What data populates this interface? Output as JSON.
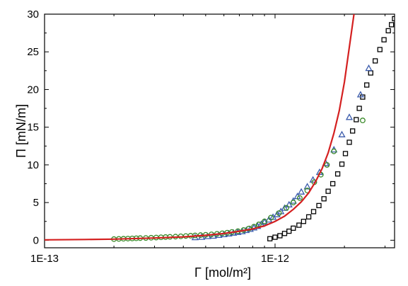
{
  "chart_data": {
    "type": "scatter",
    "title": "",
    "xlabel": "Γ [mol/m²]",
    "ylabel": "Π [mN/m]",
    "xscale": "log",
    "xlim": [
      1e-13,
      3.3e-12
    ],
    "ylim": [
      -1,
      30
    ],
    "x_ticks": [
      1e-13,
      1e-12
    ],
    "x_tick_labels": [
      "1E-13",
      "1E-12"
    ],
    "y_ticks": [
      0,
      5,
      10,
      15,
      20,
      25,
      30
    ],
    "y_tick_labels": [
      "0",
      "5",
      "10",
      "15",
      "20",
      "25",
      "30"
    ],
    "grid": false,
    "legend": "none",
    "series": [
      {
        "marker": "square",
        "color": "#000000",
        "points": [
          [
            9.5e-13,
            0.2
          ],
          [
            1e-12,
            0.4
          ],
          [
            1.05e-12,
            0.6
          ],
          [
            1.1e-12,
            0.9
          ],
          [
            1.15e-12,
            1.2
          ],
          [
            1.2e-12,
            1.6
          ],
          [
            1.27e-12,
            2.0
          ],
          [
            1.33e-12,
            2.5
          ],
          [
            1.4e-12,
            3.1
          ],
          [
            1.47e-12,
            3.8
          ],
          [
            1.55e-12,
            4.6
          ],
          [
            1.63e-12,
            5.5
          ],
          [
            1.7e-12,
            6.5
          ],
          [
            1.78e-12,
            7.5
          ],
          [
            1.87e-12,
            8.8
          ],
          [
            1.95e-12,
            10.1
          ],
          [
            2.02e-12,
            11.5
          ],
          [
            2.1e-12,
            13.0
          ],
          [
            2.17e-12,
            14.5
          ],
          [
            2.25e-12,
            16.0
          ],
          [
            2.32e-12,
            17.5
          ],
          [
            2.4e-12,
            19.0
          ],
          [
            2.5e-12,
            20.6
          ],
          [
            2.6e-12,
            22.2
          ],
          [
            2.72e-12,
            23.8
          ],
          [
            2.85e-12,
            25.3
          ],
          [
            2.97e-12,
            26.6
          ],
          [
            3.1e-12,
            27.8
          ],
          [
            3.2e-12,
            28.6
          ],
          [
            3.3e-12,
            29.4
          ]
        ]
      },
      {
        "marker": "triangle",
        "color": "#3b5bab",
        "points": [
          [
            4.5e-13,
            0.35
          ],
          [
            4.8e-13,
            0.4
          ],
          [
            5.1e-13,
            0.5
          ],
          [
            5.4e-13,
            0.55
          ],
          [
            5.7e-13,
            0.65
          ],
          [
            6e-13,
            0.75
          ],
          [
            6.3e-13,
            0.85
          ],
          [
            6.6e-13,
            0.95
          ],
          [
            6.9e-13,
            1.05
          ],
          [
            7.2e-13,
            1.15
          ],
          [
            7.5e-13,
            1.3
          ],
          [
            7.8e-13,
            1.45
          ],
          [
            8.1e-13,
            1.65
          ],
          [
            8.4e-13,
            1.85
          ],
          [
            8.7e-13,
            2.1
          ],
          [
            9e-13,
            2.4
          ],
          [
            9.4e-13,
            2.7
          ],
          [
            9.8e-13,
            3.05
          ],
          [
            1.02e-12,
            3.4
          ],
          [
            1.06e-12,
            3.8
          ],
          [
            1.1e-12,
            4.25
          ],
          [
            1.15e-12,
            4.7
          ],
          [
            1.2e-12,
            5.2
          ],
          [
            1.25e-12,
            5.8
          ],
          [
            1.3e-12,
            6.4
          ],
          [
            1.38e-12,
            7.1
          ],
          [
            1.46e-12,
            8.0
          ],
          [
            1.56e-12,
            9.0
          ],
          [
            1.66e-12,
            10.2
          ],
          [
            1.8e-12,
            12.0
          ],
          [
            1.95e-12,
            14.0
          ],
          [
            2.1e-12,
            16.3
          ],
          [
            2.35e-12,
            19.3
          ],
          [
            2.55e-12,
            22.8
          ]
        ]
      },
      {
        "marker": "circle",
        "color": "#3b8a2a",
        "points": [
          [
            2e-13,
            0.15
          ],
          [
            2.1e-13,
            0.18
          ],
          [
            2.2e-13,
            0.2
          ],
          [
            2.3e-13,
            0.22
          ],
          [
            2.4e-13,
            0.24
          ],
          [
            2.5e-13,
            0.26
          ],
          [
            2.6e-13,
            0.28
          ],
          [
            2.75e-13,
            0.3
          ],
          [
            2.9e-13,
            0.33
          ],
          [
            3.05e-13,
            0.36
          ],
          [
            3.2e-13,
            0.39
          ],
          [
            3.35e-13,
            0.42
          ],
          [
            3.5e-13,
            0.45
          ],
          [
            3.7e-13,
            0.48
          ],
          [
            3.9e-13,
            0.52
          ],
          [
            4.1e-13,
            0.56
          ],
          [
            4.3e-13,
            0.6
          ],
          [
            4.5e-13,
            0.64
          ],
          [
            4.75e-13,
            0.68
          ],
          [
            5e-13,
            0.72
          ],
          [
            5.3e-13,
            0.78
          ],
          [
            5.6e-13,
            0.85
          ],
          [
            5.9e-13,
            0.92
          ],
          [
            6.2e-13,
            1.0
          ],
          [
            6.5e-13,
            1.1
          ],
          [
            6.9e-13,
            1.2
          ],
          [
            7.3e-13,
            1.35
          ],
          [
            7.7e-13,
            1.55
          ],
          [
            8.1e-13,
            1.8
          ],
          [
            8.5e-13,
            2.1
          ],
          [
            9e-13,
            2.5
          ],
          [
            9.6e-13,
            3.0
          ],
          [
            1.04e-12,
            3.6
          ],
          [
            1.12e-12,
            4.3
          ],
          [
            1.2e-12,
            5.0
          ],
          [
            1.28e-12,
            5.6
          ],
          [
            1.38e-12,
            6.6
          ],
          [
            1.48e-12,
            7.7
          ],
          [
            1.58e-12,
            8.7
          ],
          [
            1.68e-12,
            10.0
          ],
          [
            1.8e-12,
            11.8
          ],
          [
            2.4e-12,
            15.9
          ]
        ]
      },
      {
        "marker": "line",
        "color": "#d42020",
        "points": [
          [
            1e-13,
            0.05
          ],
          [
            1.5e-13,
            0.1
          ],
          [
            2e-13,
            0.15
          ],
          [
            3e-13,
            0.3
          ],
          [
            4e-13,
            0.45
          ],
          [
            5e-13,
            0.65
          ],
          [
            6e-13,
            0.9
          ],
          [
            7e-13,
            1.2
          ],
          [
            8e-13,
            1.5
          ],
          [
            9e-13,
            1.9
          ],
          [
            1e-12,
            2.5
          ],
          [
            1.1e-12,
            3.2
          ],
          [
            1.2e-12,
            4.1
          ],
          [
            1.3e-12,
            5.1
          ],
          [
            1.4e-12,
            6.3
          ],
          [
            1.5e-12,
            7.8
          ],
          [
            1.6e-12,
            9.5
          ],
          [
            1.7e-12,
            11.6
          ],
          [
            1.8e-12,
            14.2
          ],
          [
            1.9e-12,
            17.2
          ],
          [
            2e-12,
            21.0
          ],
          [
            2.1e-12,
            25.6
          ],
          [
            2.2e-12,
            30.0
          ]
        ]
      }
    ]
  }
}
